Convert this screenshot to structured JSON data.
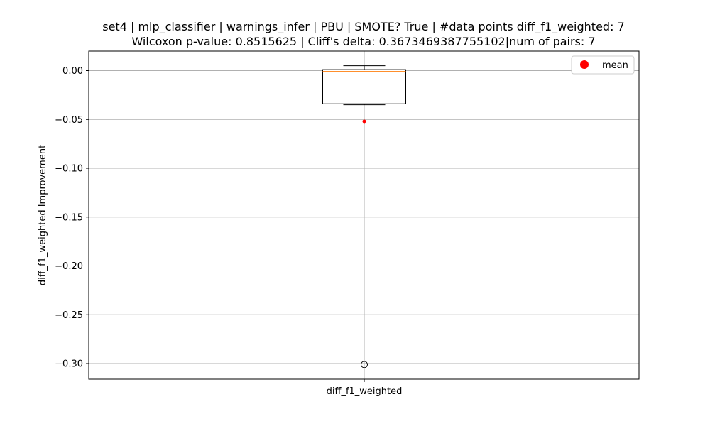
{
  "chart_data": {
    "type": "box",
    "title_line1": "set4 | mlp_classifier | warnings_infer | PBU | SMOTE? True | #data points diff_f1_weighted: 7",
    "title_line2": "Wilcoxon p-value: 0.8515625 | Cliff's delta: 0.3673469387755102|num of pairs: 7",
    "xlabel": "",
    "ylabel": "diff_f1_weighted Improvement",
    "categories": [
      "diff_f1_weighted"
    ],
    "box": {
      "whisker_low": -0.035,
      "q1": -0.034,
      "median": -0.001,
      "q3": 0.001,
      "whisker_high": 0.005,
      "outliers": [
        -0.301
      ],
      "mean": -0.052
    },
    "ylim": [
      -0.316,
      0.02
    ],
    "yticks": [
      0.0,
      -0.05,
      -0.1,
      -0.15,
      -0.2,
      -0.25,
      -0.3
    ],
    "ytick_labels": [
      "0.00",
      "−0.05",
      "−0.10",
      "−0.15",
      "−0.20",
      "−0.25",
      "−0.30"
    ],
    "grid": true,
    "legend": {
      "position": "top-right",
      "entries": [
        "mean"
      ]
    },
    "colors": {
      "box": "#000000",
      "median": "#ff7f0e",
      "mean": "#ff0000",
      "grid": "#b0b0b0"
    }
  }
}
